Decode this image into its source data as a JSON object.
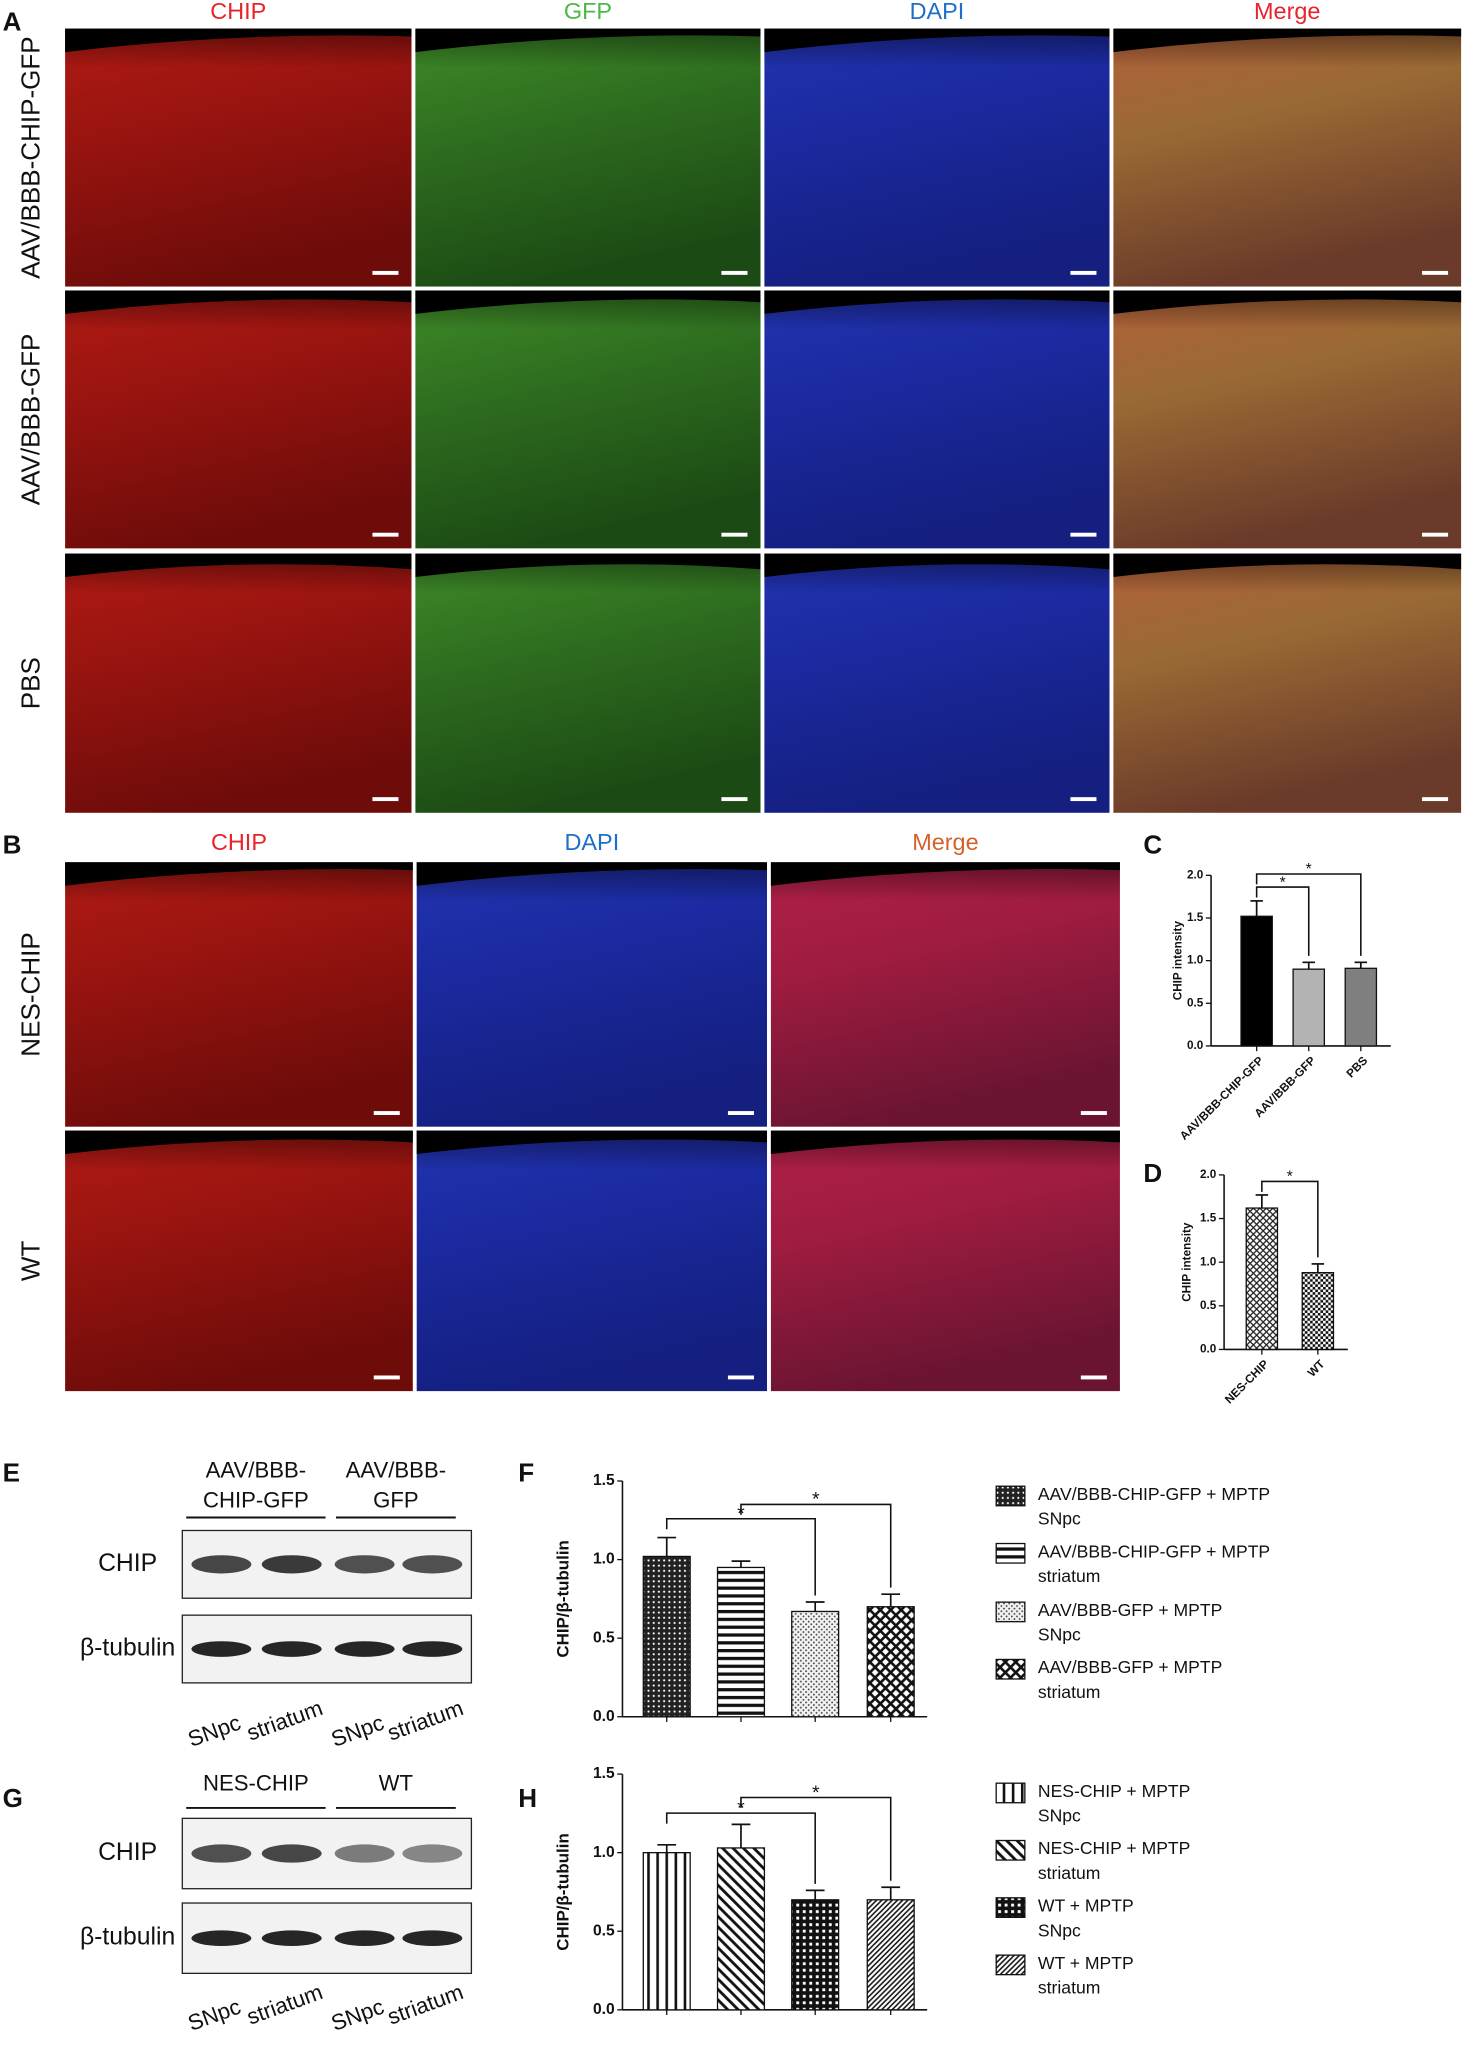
{
  "panel_a": {
    "label": "A",
    "headers": [
      {
        "text": "CHIP",
        "color": "#e8232a"
      },
      {
        "text": "GFP",
        "color": "#4cb848"
      },
      {
        "text": "DAPI",
        "color": "#1f6ec8"
      },
      {
        "text": "Merge",
        "color": "#e8232a"
      }
    ],
    "rows": [
      "AAV/BBB-CHIP-GFP",
      "AAV/BBB-GFP",
      "PBS"
    ]
  },
  "panel_b": {
    "label": "B",
    "headers": [
      {
        "text": "CHIP",
        "color": "#e8232a"
      },
      {
        "text": "DAPI",
        "color": "#1f6ec8"
      },
      {
        "text": "Merge",
        "color": "#d2622a"
      }
    ],
    "rows": [
      "NES-CHIP",
      "WT"
    ]
  },
  "panel_e": {
    "label": "E",
    "groups": [
      [
        "AAV/BBB-",
        "CHIP-GFP"
      ],
      [
        "AAV/BBB-",
        "GFP"
      ]
    ],
    "blots": [
      "CHIP",
      "β-tubulin"
    ],
    "lanes": [
      "SNpc",
      "striatum",
      "SNpc",
      "striatum"
    ]
  },
  "panel_g": {
    "label": "G",
    "groups": [
      [
        "NES-CHIP"
      ],
      [
        "WT"
      ]
    ],
    "blots": [
      "CHIP",
      "β-tubulin"
    ],
    "lanes": [
      "SNpc",
      "striatum",
      "SNpc",
      "striatum"
    ]
  },
  "chart_data": [
    {
      "type": "bar",
      "label": "C",
      "ylabel": "CHIP intensity",
      "categories": [
        "AAV/BBB-CHIP-GFP",
        "AAV/BBB-GFP",
        "PBS"
      ],
      "values": [
        1.52,
        0.9,
        0.91
      ],
      "errors": [
        0.18,
        0.08,
        0.07
      ],
      "colors": [
        "#000000",
        "#b3b3b3",
        "#7f7f7f"
      ],
      "ylim": [
        0,
        2
      ],
      "yticks": [
        {
          "value": 0,
          "label": "0.0"
        },
        0.5,
        {
          "value": 1,
          "label": "1.0"
        },
        1.5,
        {
          "value": 2,
          "label": "2.0"
        }
      ],
      "annotations": [
        "*",
        "*"
      ]
    },
    {
      "type": "bar",
      "label": "D",
      "ylabel": "CHIP intensity",
      "categories": [
        "NES-CHIP",
        "WT"
      ],
      "values": [
        1.62,
        0.88
      ],
      "errors": [
        0.15,
        0.1
      ],
      "patterns": [
        "diamond",
        "checker"
      ],
      "ylim": [
        0,
        2
      ],
      "yticks": [
        {
          "value": 0,
          "label": "0.0"
        },
        0.5,
        {
          "value": 1,
          "label": "1.0"
        },
        1.5,
        {
          "value": 2,
          "label": "2.0"
        }
      ],
      "annotations": [
        "*"
      ]
    },
    {
      "type": "bar",
      "label": "F",
      "ylabel": "CHIP/β-tubulin",
      "series": [
        {
          "name": [
            "AAV/BBB-CHIP-GFP + MPTP",
            "SNpc"
          ],
          "pattern": "dense-dots",
          "values": [
            1.02
          ],
          "errors": [
            0.12
          ]
        },
        {
          "name": [
            "AAV/BBB-CHIP-GFP + MPTP",
            "striatum"
          ],
          "pattern": "hlines",
          "values": [
            0.95
          ],
          "errors": [
            0.04
          ]
        },
        {
          "name": [
            "AAV/BBB-GFP + MPTP",
            "SNpc"
          ],
          "pattern": "light-dots",
          "values": [
            0.67
          ],
          "errors": [
            0.06
          ]
        },
        {
          "name": [
            "AAV/BBB-GFP + MPTP",
            "striatum"
          ],
          "pattern": "crosshatch",
          "values": [
            0.7
          ],
          "errors": [
            0.08
          ]
        }
      ],
      "ylim": [
        0,
        1.5
      ],
      "yticks": [
        {
          "value": 0,
          "label": "0.0"
        },
        0.5,
        {
          "value": 1,
          "label": "1.0"
        },
        1.5
      ],
      "annotations": [
        "*",
        "*"
      ]
    },
    {
      "type": "bar",
      "label": "H",
      "ylabel": "CHIP/β-tubulin",
      "series": [
        {
          "name": [
            "NES-CHIP + MPTP",
            "SNpc"
          ],
          "pattern": "vlines",
          "values": [
            1.0
          ],
          "errors": [
            0.05
          ]
        },
        {
          "name": [
            "NES-CHIP + MPTP",
            "striatum"
          ],
          "pattern": "diag",
          "values": [
            1.03
          ],
          "errors": [
            0.15
          ]
        },
        {
          "name": [
            "WT + MPTP",
            "SNpc"
          ],
          "pattern": "grid",
          "values": [
            0.7
          ],
          "errors": [
            0.06
          ]
        },
        {
          "name": [
            "WT + MPTP",
            "striatum"
          ],
          "pattern": "diag-dense",
          "values": [
            0.7
          ],
          "errors": [
            0.08
          ]
        }
      ],
      "ylim": [
        0,
        1.5
      ],
      "yticks": [
        {
          "value": 0,
          "label": "0.0"
        },
        0.5,
        {
          "value": 1,
          "label": "1.0"
        },
        1.5
      ],
      "annotations": [
        "*",
        "*"
      ]
    }
  ]
}
